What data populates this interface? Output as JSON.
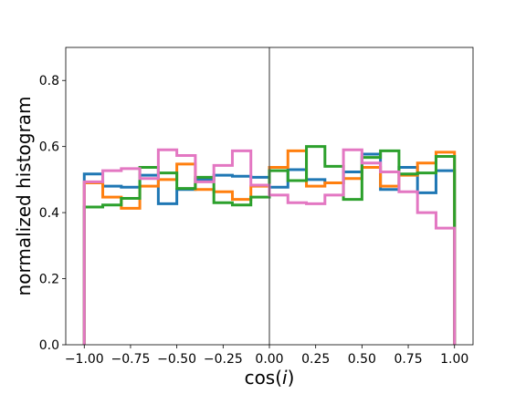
{
  "chart_data": {
    "type": "line",
    "drawstyle": "steps",
    "title": "",
    "xlabel": "cos(",
    "xlabel_var": "i",
    "xlabel_close": ")",
    "ylabel": "normalized histogram",
    "xlim": [
      -1.1,
      1.1
    ],
    "ylim": [
      0.0,
      0.9
    ],
    "xticks": [
      -1.0,
      -0.75,
      -0.5,
      -0.25,
      0.0,
      0.25,
      0.5,
      0.75,
      1.0
    ],
    "xtick_labels": [
      "−1.00",
      "−0.75",
      "−0.50",
      "−0.25",
      "0.00",
      "0.25",
      "0.50",
      "0.75",
      "1.00"
    ],
    "yticks": [
      0.0,
      0.2,
      0.4,
      0.6,
      0.8
    ],
    "ytick_labels": [
      "0.0",
      "0.2",
      "0.4",
      "0.6",
      "0.8"
    ],
    "vertical_line_x": 0.0,
    "bin_edges": [
      -1.0,
      -0.9,
      -0.8,
      -0.7,
      -0.6,
      -0.5,
      -0.4,
      -0.3,
      -0.2,
      -0.1,
      0.0,
      0.1,
      0.2,
      0.3,
      0.4,
      0.5,
      0.6,
      0.7,
      0.8,
      0.9,
      1.0
    ],
    "series": [
      {
        "color": "#1f77b4",
        "values": [
          0.517,
          0.48,
          0.477,
          0.513,
          0.427,
          0.47,
          0.5,
          0.513,
          0.51,
          0.507,
          0.477,
          0.53,
          0.5,
          0.49,
          0.523,
          0.577,
          0.47,
          0.537,
          0.46,
          0.527
        ]
      },
      {
        "color": "#ff7f0e",
        "values": [
          0.49,
          0.447,
          0.413,
          0.48,
          0.5,
          0.547,
          0.47,
          0.463,
          0.44,
          0.48,
          0.537,
          0.587,
          0.48,
          0.49,
          0.503,
          0.537,
          0.48,
          0.513,
          0.55,
          0.583
        ]
      },
      {
        "color": "#2ca02c",
        "values": [
          0.417,
          0.423,
          0.443,
          0.537,
          0.52,
          0.473,
          0.507,
          0.43,
          0.423,
          0.447,
          0.527,
          0.497,
          0.6,
          0.54,
          0.44,
          0.567,
          0.587,
          0.517,
          0.52,
          0.57
        ]
      },
      {
        "color": "#e377c2",
        "values": [
          0.493,
          0.527,
          0.533,
          0.503,
          0.59,
          0.573,
          0.493,
          0.543,
          0.587,
          0.483,
          0.453,
          0.43,
          0.427,
          0.453,
          0.59,
          0.55,
          0.523,
          0.463,
          0.4,
          0.353
        ]
      }
    ]
  }
}
